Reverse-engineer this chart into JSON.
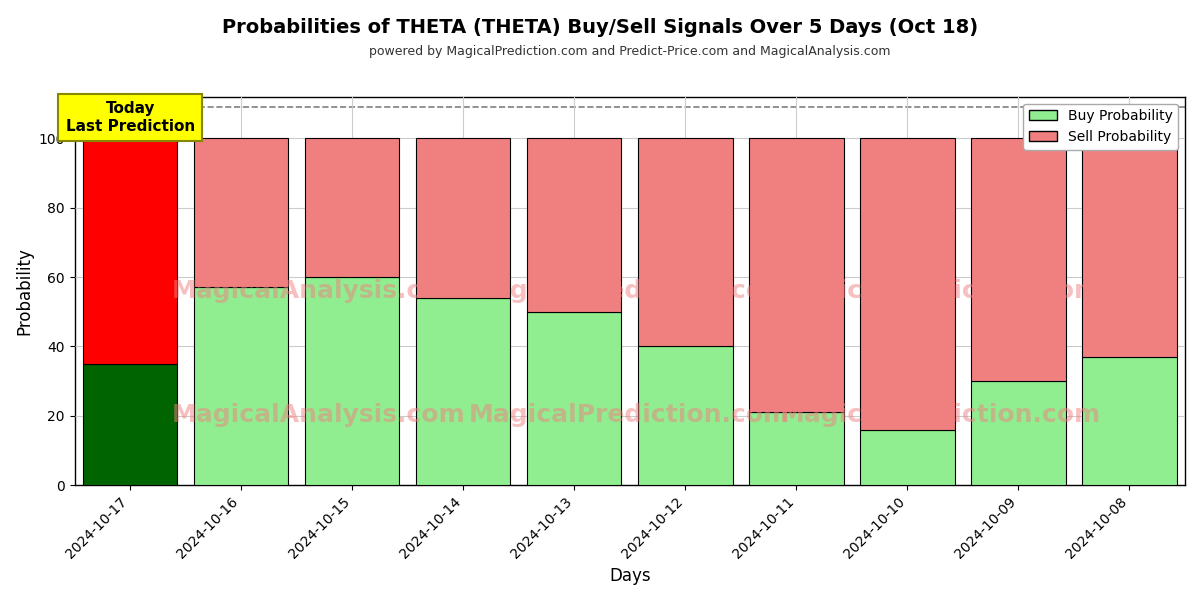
{
  "title": "Probabilities of THETA (THETA) Buy/Sell Signals Over 5 Days (Oct 18)",
  "subtitle": "powered by MagicalPrediction.com and Predict-Price.com and MagicalAnalysis.com",
  "xlabel": "Days",
  "ylabel": "Probability",
  "days": [
    "2024-10-17",
    "2024-10-16",
    "2024-10-15",
    "2024-10-14",
    "2024-10-13",
    "2024-10-12",
    "2024-10-11",
    "2024-10-10",
    "2024-10-09",
    "2024-10-08"
  ],
  "buy_probs": [
    35,
    57,
    60,
    54,
    50,
    40,
    21,
    16,
    30,
    37
  ],
  "sell_probs": [
    65,
    43,
    40,
    46,
    50,
    60,
    79,
    84,
    70,
    63
  ],
  "buy_color_today": "#006400",
  "sell_color_today": "#ff0000",
  "buy_color_rest": "#90EE90",
  "sell_color_rest": "#F08080",
  "bar_edge_color": "#000000",
  "today_annotation_bg": "#ffff00",
  "today_annotation_text": "Today\nLast Prediction",
  "ylim": [
    0,
    112
  ],
  "yticks": [
    0,
    20,
    40,
    60,
    80,
    100
  ],
  "dashed_line_y": 109,
  "legend_buy_label": "Buy Probability",
  "legend_sell_label": "Sell Probability",
  "fig_width": 12.0,
  "fig_height": 6.0,
  "bg_color": "#ffffff",
  "grid_color": "#cccccc",
  "bar_width": 0.85
}
